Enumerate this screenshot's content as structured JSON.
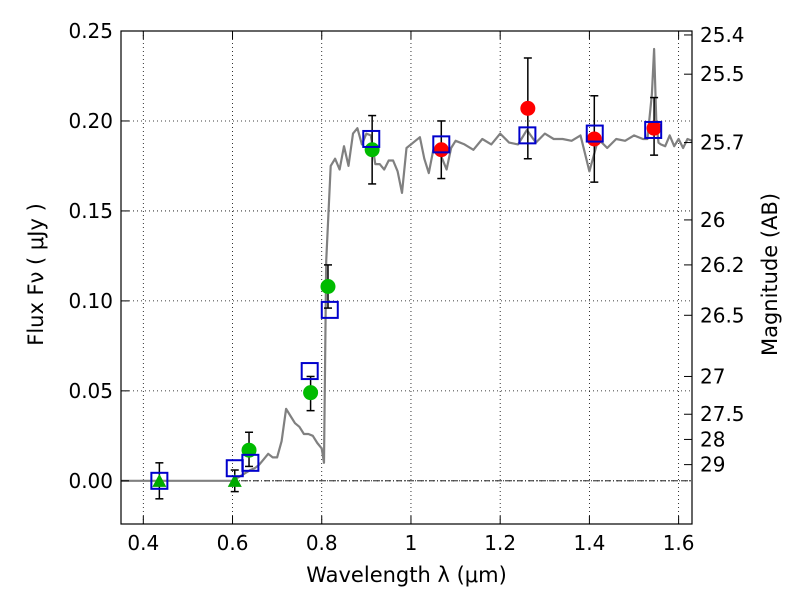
{
  "chart_data": {
    "type": "scatter",
    "title": "",
    "xlabel": "Wavelength  λ (μm)",
    "ylabel": "Flux  Fν  ( μJy )",
    "y2label": "Magnitude (AB)",
    "xlim": [
      0.35,
      1.63
    ],
    "ylim": [
      -0.024,
      0.25
    ],
    "xticks": [
      0.4,
      0.6,
      0.8,
      1.0,
      1.2,
      1.4,
      1.6
    ],
    "xtick_labels": [
      "0.4",
      "0.6",
      "0.8",
      "1",
      "1.2",
      "1.4",
      "1.6"
    ],
    "yticks": [
      0.0,
      0.05,
      0.1,
      0.15,
      0.2,
      0.25
    ],
    "ytick_labels": [
      "0.00",
      "0.05",
      "0.10",
      "0.15",
      "0.20",
      "0.25"
    ],
    "y2ticks": [
      {
        "flux": 0.2478,
        "label": "25.4"
      },
      {
        "flux": 0.226,
        "label": "25.5"
      },
      {
        "flux": 0.188,
        "label": "25.7"
      },
      {
        "flux": 0.145,
        "label": "26"
      },
      {
        "flux": 0.12,
        "label": "26.2"
      },
      {
        "flux": 0.092,
        "label": "26.5"
      },
      {
        "flux": 0.058,
        "label": "27"
      },
      {
        "flux": 0.037,
        "label": "27.5"
      },
      {
        "flux": 0.023,
        "label": "28"
      },
      {
        "flux": 0.009,
        "label": "29"
      }
    ],
    "grid": true,
    "zero_line": 0.0,
    "series": [
      {
        "kind": "line",
        "color": "#808080",
        "x": [
          0.35,
          0.4,
          0.45,
          0.5,
          0.55,
          0.6,
          0.62,
          0.64,
          0.65,
          0.66,
          0.67,
          0.68,
          0.69,
          0.7,
          0.71,
          0.72,
          0.73,
          0.74,
          0.75,
          0.76,
          0.77,
          0.78,
          0.79,
          0.8,
          0.805,
          0.81,
          0.82,
          0.83,
          0.84,
          0.85,
          0.86,
          0.87,
          0.88,
          0.89,
          0.9,
          0.91,
          0.92,
          0.93,
          0.94,
          0.95,
          0.96,
          0.97,
          0.98,
          0.99,
          1.0,
          1.01,
          1.02,
          1.03,
          1.04,
          1.05,
          1.06,
          1.07,
          1.08,
          1.09,
          1.1,
          1.12,
          1.14,
          1.16,
          1.18,
          1.2,
          1.22,
          1.24,
          1.26,
          1.28,
          1.3,
          1.32,
          1.34,
          1.36,
          1.38,
          1.4,
          1.42,
          1.44,
          1.46,
          1.48,
          1.5,
          1.52,
          1.53,
          1.54,
          1.545,
          1.55,
          1.555,
          1.56,
          1.57,
          1.58,
          1.59,
          1.6,
          1.61,
          1.62,
          1.63
        ],
        "y": [
          0.0,
          0.0,
          0.0,
          0.0,
          0.0,
          0.0,
          0.003,
          0.006,
          0.007,
          0.009,
          0.012,
          0.015,
          0.013,
          0.013,
          0.022,
          0.04,
          0.036,
          0.032,
          0.03,
          0.026,
          0.026,
          0.025,
          0.021,
          0.018,
          0.01,
          0.122,
          0.175,
          0.179,
          0.173,
          0.186,
          0.175,
          0.193,
          0.196,
          0.187,
          0.193,
          0.192,
          0.176,
          0.176,
          0.173,
          0.178,
          0.178,
          0.172,
          0.16,
          0.185,
          0.187,
          0.189,
          0.191,
          0.179,
          0.171,
          0.184,
          0.185,
          0.179,
          0.173,
          0.185,
          0.189,
          0.187,
          0.184,
          0.19,
          0.187,
          0.193,
          0.188,
          0.187,
          0.195,
          0.188,
          0.193,
          0.19,
          0.19,
          0.189,
          0.192,
          0.172,
          0.19,
          0.185,
          0.19,
          0.189,
          0.192,
          0.19,
          0.19,
          0.215,
          0.24,
          0.2,
          0.188,
          0.187,
          0.186,
          0.192,
          0.186,
          0.19,
          0.185,
          0.19,
          0.189
        ]
      },
      {
        "name": "",
        "kind": "open-square",
        "color": "#0000cc",
        "x": [
          0.436,
          0.605,
          0.64,
          0.773,
          0.818,
          0.911,
          1.068,
          1.261,
          1.412,
          1.543
        ],
        "y": [
          0.0,
          0.007,
          0.01,
          0.061,
          0.095,
          0.19,
          0.187,
          0.192,
          0.193,
          0.195
        ]
      },
      {
        "name": "",
        "kind": "filled-circle",
        "color": "#00bb00",
        "x": [
          0.637,
          0.775,
          0.814,
          0.913
        ],
        "y": [
          0.017,
          0.049,
          0.108,
          0.184
        ]
      },
      {
        "name": "",
        "kind": "filled-circle",
        "color": "#ff0000",
        "x": [
          1.068,
          1.262,
          1.411,
          1.545
        ],
        "y": [
          0.184,
          0.207,
          0.19,
          0.196
        ]
      },
      {
        "name": "",
        "kind": "filled-triangle",
        "color": "#00aa00",
        "x": [
          0.436,
          0.605
        ],
        "y": [
          0.0,
          0.0
        ]
      }
    ],
    "errorbars": [
      {
        "x": 0.436,
        "lo": -0.01,
        "hi": 0.01
      },
      {
        "x": 0.605,
        "lo": -0.006,
        "hi": 0.006
      },
      {
        "x": 0.637,
        "lo": 0.008,
        "hi": 0.027
      },
      {
        "x": 0.775,
        "lo": 0.039,
        "hi": 0.058
      },
      {
        "x": 0.814,
        "lo": 0.096,
        "hi": 0.12
      },
      {
        "x": 0.913,
        "lo": 0.165,
        "hi": 0.203
      },
      {
        "x": 1.068,
        "lo": 0.168,
        "hi": 0.2
      },
      {
        "x": 1.262,
        "lo": 0.179,
        "hi": 0.235
      },
      {
        "x": 1.411,
        "lo": 0.166,
        "hi": 0.214
      },
      {
        "x": 1.545,
        "lo": 0.181,
        "hi": 0.213
      }
    ]
  }
}
